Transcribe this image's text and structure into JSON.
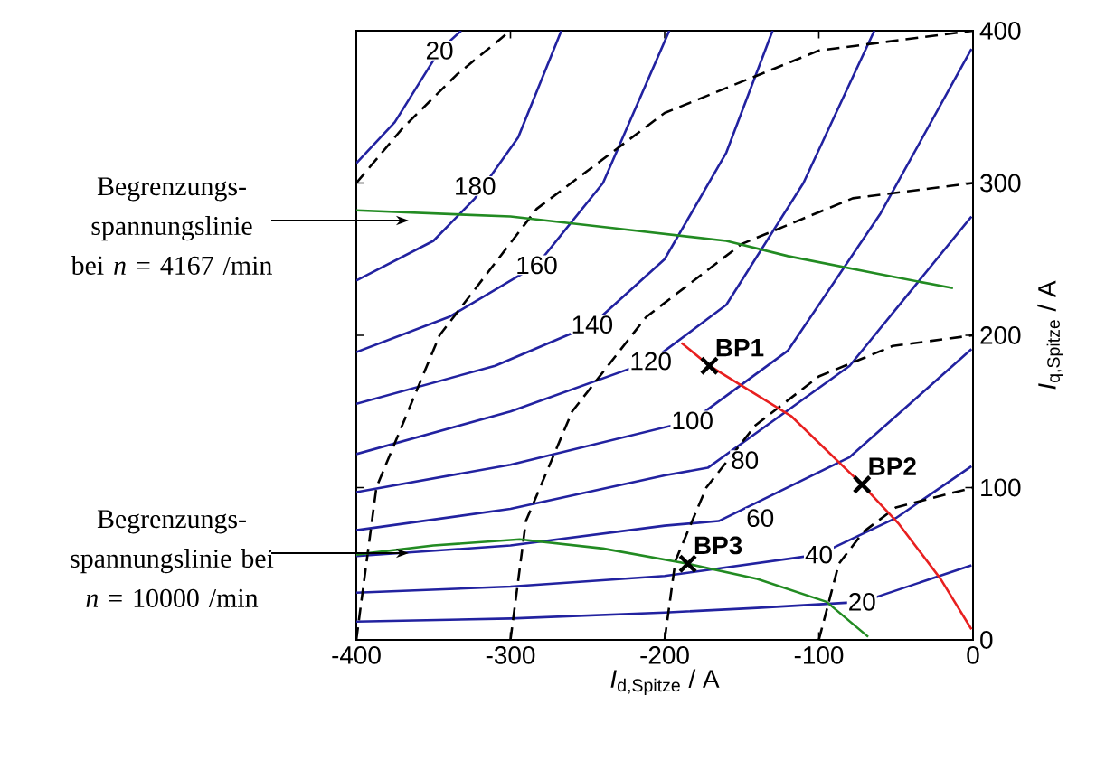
{
  "chart_data": {
    "type": "line",
    "xlabel": "*I*$_{d,Spitze}$ / A",
    "ylabel": "*I*$_{q,Spitze}$ / A",
    "xlim": [
      -400,
      0
    ],
    "ylim": [
      0,
      400
    ],
    "xticks": [
      -400,
      -300,
      -200,
      -100,
      0
    ],
    "yticks": [
      0,
      100,
      200,
      300,
      400
    ],
    "series": [
      {
        "color": "#2222a0",
        "x": [
          -400,
          -375,
          -346,
          -332
        ],
        "values": [
          313,
          340,
          387,
          400
        ]
      },
      {
        "color": "#2222a0",
        "x": [
          -400,
          -350,
          -323,
          -295,
          -267
        ],
        "values": [
          236,
          262,
          290,
          330,
          400
        ]
      },
      {
        "color": "#2222a0",
        "x": [
          -400,
          -340,
          -283,
          -240,
          -197
        ],
        "values": [
          189,
          212,
          246,
          300,
          400
        ]
      },
      {
        "color": "#2222a0",
        "x": [
          -400,
          -310,
          -247,
          -200,
          -160,
          -130
        ],
        "values": [
          155,
          180,
          207,
          250,
          320,
          400
        ]
      },
      {
        "color": "#2222a0",
        "x": [
          -400,
          -300,
          -209,
          -160,
          -110,
          -64
        ],
        "values": [
          122,
          150,
          183,
          220,
          300,
          400
        ]
      },
      {
        "color": "#2222a0",
        "x": [
          -400,
          -300,
          -182,
          -120,
          -60,
          -1
        ],
        "values": [
          97,
          115,
          144,
          190,
          280,
          388
        ]
      },
      {
        "color": "#2222a0",
        "x": [
          -400,
          -300,
          -200,
          -172,
          -80,
          -1
        ],
        "values": [
          72,
          86,
          108,
          113,
          180,
          278
        ]
      },
      {
        "color": "#2222a0",
        "x": [
          -400,
          -300,
          -200,
          -165,
          -80,
          -1
        ],
        "values": [
          55,
          62,
          75,
          78,
          120,
          191
        ]
      },
      {
        "color": "#2222a0",
        "x": [
          -400,
          -300,
          -200,
          -100,
          -50,
          -1
        ],
        "values": [
          31,
          35,
          42,
          56,
          80,
          114
        ]
      },
      {
        "color": "#2222a0",
        "x": [
          -400,
          -300,
          -200,
          -140,
          -72,
          -1
        ],
        "values": [
          12,
          14,
          18,
          21,
          25,
          49
        ]
      },
      {
        "color": "#000000",
        "line_style": "dashed",
        "x": [
          -100,
          -87,
          -71,
          -50,
          0
        ],
        "values": [
          0,
          50,
          71,
          87,
          100
        ]
      },
      {
        "color": "#000000",
        "line_style": "dashed",
        "x": [
          -200,
          -193,
          -173,
          -141,
          -100,
          -52,
          0
        ],
        "values": [
          0,
          52,
          100,
          141,
          173,
          193,
          200
        ]
      },
      {
        "color": "#000000",
        "line_style": "dashed",
        "x": [
          -300,
          -290,
          -260,
          -212,
          -150,
          -78,
          0
        ],
        "values": [
          0,
          78,
          150,
          212,
          260,
          290,
          300
        ]
      },
      {
        "color": "#000000",
        "line_style": "dashed",
        "x": [
          -400,
          -387,
          -346,
          -283,
          -200,
          -100,
          0
        ],
        "values": [
          0,
          100,
          200,
          283,
          346,
          387,
          400
        ]
      },
      {
        "color": "#000000",
        "line_style": "dashed",
        "x": [
          -400,
          -370,
          -335,
          -300
        ],
        "values": [
          300,
          336,
          371,
          400
        ]
      },
      {
        "color": "#228b22",
        "x": [
          -400,
          -300,
          -230,
          -160,
          -120,
          -60,
          -13
        ],
        "values": [
          282,
          278,
          270,
          262,
          252,
          240,
          231
        ]
      },
      {
        "color": "#228b22",
        "x": [
          -400,
          -350,
          -294,
          -240,
          -185,
          -140,
          -95,
          -68
        ],
        "values": [
          56,
          62,
          66,
          60,
          50,
          40,
          25,
          2
        ]
      },
      {
        "color": "#e82020",
        "x": [
          -189,
          -171,
          -118,
          -72,
          -48,
          -21,
          -1
        ],
        "values": [
          195,
          180,
          147,
          102,
          76,
          40,
          7
        ]
      },
      {
        "type": "scatter",
        "marker": "cross",
        "color": "#000000",
        "x": [
          -171,
          -72,
          -185
        ],
        "values": [
          180,
          102,
          50
        ]
      }
    ],
    "annotations": [
      {
        "text": "20",
        "x": -346,
        "y": 387
      },
      {
        "text": "180",
        "x": -323,
        "y": 298
      },
      {
        "text": "160",
        "x": -283,
        "y": 246
      },
      {
        "text": "140",
        "x": -247,
        "y": 207
      },
      {
        "text": "120",
        "x": -209,
        "y": 183
      },
      {
        "text": "100",
        "x": -182,
        "y": 144
      },
      {
        "text": "80",
        "x": -148,
        "y": 118
      },
      {
        "text": "60",
        "x": -138,
        "y": 80
      },
      {
        "text": "40",
        "x": -100,
        "y": 56
      },
      {
        "text": "20",
        "x": -72,
        "y": 25
      },
      {
        "text": "**BP1**",
        "x": -171,
        "y": 180
      },
      {
        "text": "**BP2**",
        "x": -72,
        "y": 102
      },
      {
        "text": "**BP3**",
        "x": -185,
        "y": 50
      },
      "Begrenzungs-spannungslinie bei *n* = 4167 /min",
      "Begrenzungs-spannungslinie bei *n* = 10000 /min"
    ]
  }
}
